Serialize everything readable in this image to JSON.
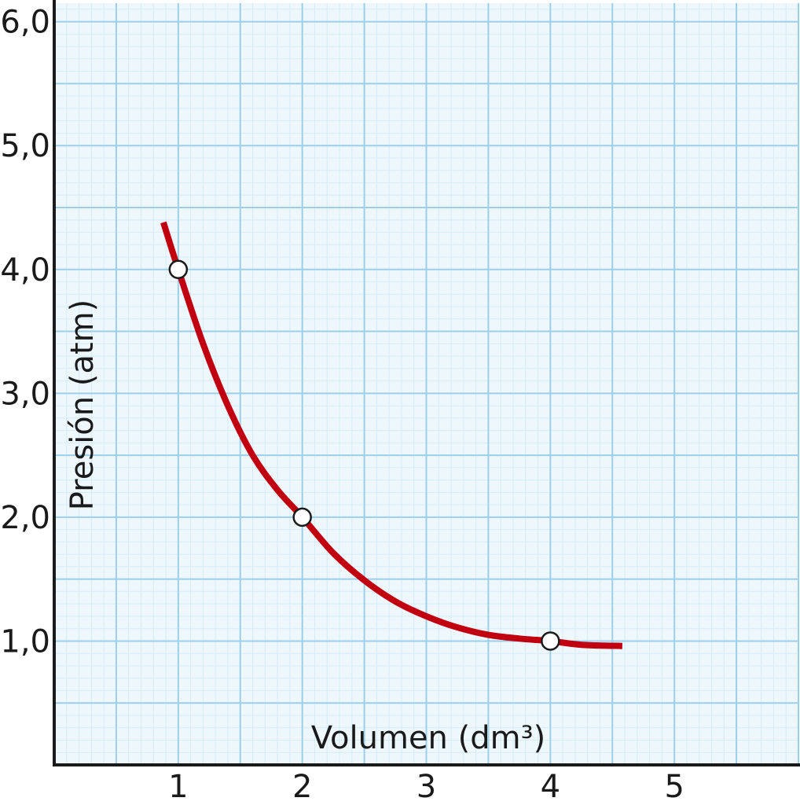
{
  "chart_data": {
    "type": "line",
    "xlabel": "Volumen (dm³)",
    "ylabel": "Presión (atm)",
    "x_ticks": [
      {
        "value": 1,
        "label": "1"
      },
      {
        "value": 2,
        "label": "2"
      },
      {
        "value": 3,
        "label": "3"
      },
      {
        "value": 4,
        "label": "4"
      },
      {
        "value": 5,
        "label": "5"
      }
    ],
    "y_ticks": [
      {
        "value": 1,
        "label": "1,0"
      },
      {
        "value": 2,
        "label": "2,0"
      },
      {
        "value": 3,
        "label": "3,0"
      },
      {
        "value": 4,
        "label": "4,0"
      },
      {
        "value": 5,
        "label": "5,0"
      },
      {
        "value": 6,
        "label": "6,0"
      }
    ],
    "xlim": [
      0,
      6
    ],
    "ylim": [
      0,
      6.15
    ],
    "grid": true,
    "series": [
      {
        "curve": [
          [
            0.88,
            4.38
          ],
          [
            1.0,
            4.0
          ],
          [
            1.2,
            3.4
          ],
          [
            1.4,
            2.9
          ],
          [
            1.6,
            2.5
          ],
          [
            1.8,
            2.22
          ],
          [
            2.0,
            2.0
          ],
          [
            2.25,
            1.71
          ],
          [
            2.5,
            1.49
          ],
          [
            2.75,
            1.32
          ],
          [
            3.0,
            1.2
          ],
          [
            3.25,
            1.11
          ],
          [
            3.5,
            1.05
          ],
          [
            3.75,
            1.02
          ],
          [
            4.0,
            1.0
          ],
          [
            4.25,
            0.97
          ],
          [
            4.58,
            0.96
          ]
        ],
        "points": [
          {
            "x": 1,
            "y": 4.0
          },
          {
            "x": 2,
            "y": 2.0
          },
          {
            "x": 4,
            "y": 1.0
          }
        ],
        "color": "#c00010"
      }
    ],
    "colors": {
      "grid_major": "#9ccfe8",
      "grid_minor": "#d6ecf6",
      "background": "#eef7fc",
      "axis": "#1a1a1a",
      "marker_fill": "#ffffff",
      "marker_stroke": "#1a1a1a"
    }
  }
}
